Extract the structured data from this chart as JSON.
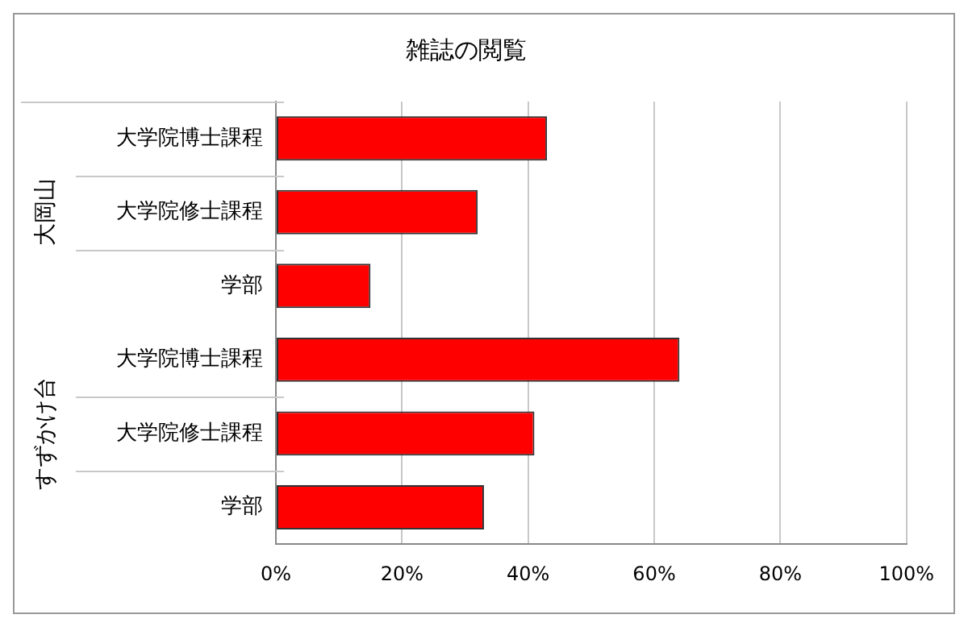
{
  "chart_data": {
    "type": "bar",
    "orientation": "horizontal",
    "title": "雑誌の閲覧",
    "categories": [
      "大学院博士課程",
      "大学院修士課程",
      "学部",
      "大学院博士課程",
      "大学院修士課程",
      "学部"
    ],
    "values": [
      43,
      32,
      15,
      64,
      41,
      33
    ],
    "color": "#ff0000",
    "annotations": [
      "大岡山",
      "すずかけ台"
    ],
    "xlim": [
      0,
      100
    ],
    "xticks": [
      {
        "value": 0,
        "label": "0%"
      },
      {
        "value": 20,
        "label": "20%"
      },
      {
        "value": 40,
        "label": "40%"
      },
      {
        "value": 60,
        "label": "60%"
      },
      {
        "value": 80,
        "label": "80%"
      },
      {
        "value": 100,
        "label": "100%"
      }
    ],
    "grid": "x",
    "legend": false
  }
}
